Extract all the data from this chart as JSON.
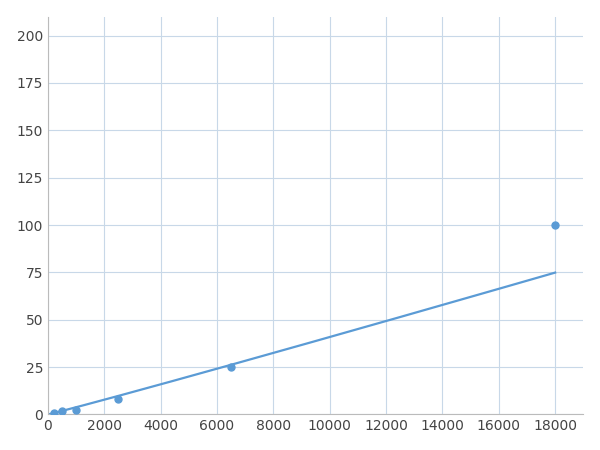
{
  "x_data": [
    200,
    500,
    1000,
    2500,
    6500,
    18000
  ],
  "y_data": [
    1.0,
    2.0,
    2.5,
    8.0,
    25.0,
    100.0
  ],
  "line_color": "#5B9BD5",
  "marker_color": "#5B9BD5",
  "marker_size": 5,
  "linewidth": 1.6,
  "xlim": [
    0,
    19000
  ],
  "ylim": [
    0,
    210
  ],
  "xticks": [
    0,
    2000,
    4000,
    6000,
    8000,
    10000,
    12000,
    14000,
    16000,
    18000
  ],
  "yticks": [
    0,
    25,
    50,
    75,
    100,
    125,
    150,
    175,
    200
  ],
  "grid_color": "#C8D8E8",
  "background_color": "#FFFFFF",
  "fig_background": "#FFFFFF",
  "spine_color": "#BBBBBB"
}
